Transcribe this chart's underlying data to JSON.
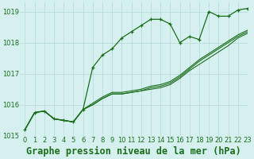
{
  "title": "Graphe pression niveau de la mer (hPa)",
  "background_color": "#d6f0f0",
  "grid_color": "#b8dede",
  "line_color": "#1a6e1a",
  "xlim": [
    -0.5,
    23
  ],
  "ylim": [
    1015.0,
    1019.3
  ],
  "yticks": [
    1015,
    1016,
    1017,
    1018,
    1019
  ],
  "xticks": [
    0,
    1,
    2,
    3,
    4,
    5,
    6,
    7,
    8,
    9,
    10,
    11,
    12,
    13,
    14,
    15,
    16,
    17,
    18,
    19,
    20,
    21,
    22,
    23
  ],
  "series_main": [
    1015.2,
    1015.75,
    1015.8,
    1015.55,
    1015.5,
    1015.45,
    1015.85,
    1017.2,
    1017.6,
    1017.8,
    1018.15,
    1018.35,
    1018.55,
    1018.75,
    1018.75,
    1018.6,
    1018.0,
    1018.2,
    1018.1,
    1019.0,
    1018.85,
    1018.85,
    1019.05,
    1019.1
  ],
  "series_lines": [
    [
      1015.2,
      1015.75,
      1015.8,
      1015.55,
      1015.5,
      1015.45,
      1015.85,
      1016.0,
      1016.2,
      1016.35,
      1016.35,
      1016.4,
      1016.45,
      1016.5,
      1016.55,
      1016.65,
      1016.85,
      1017.1,
      1017.3,
      1017.5,
      1017.7,
      1017.9,
      1018.15,
      1018.3
    ],
    [
      1015.2,
      1015.75,
      1015.8,
      1015.55,
      1015.5,
      1015.45,
      1015.85,
      1016.0,
      1016.2,
      1016.35,
      1016.35,
      1016.4,
      1016.45,
      1016.55,
      1016.6,
      1016.7,
      1016.9,
      1017.15,
      1017.4,
      1017.6,
      1017.8,
      1018.0,
      1018.2,
      1018.35
    ],
    [
      1015.2,
      1015.75,
      1015.8,
      1015.55,
      1015.5,
      1015.45,
      1015.85,
      1016.05,
      1016.25,
      1016.4,
      1016.4,
      1016.45,
      1016.5,
      1016.6,
      1016.65,
      1016.75,
      1016.95,
      1017.2,
      1017.45,
      1017.65,
      1017.85,
      1018.05,
      1018.25,
      1018.4
    ]
  ],
  "title_fontsize": 8.5,
  "tick_fontsize": 6.0
}
